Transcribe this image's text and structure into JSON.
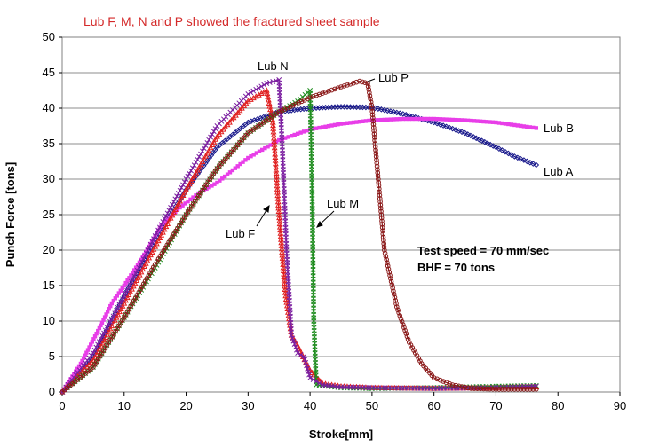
{
  "chart_data": {
    "type": "line",
    "title": "Lub F, M, N and P showed the fractured sheet sample",
    "title_color": "#d42a2a",
    "xlabel": "Stroke[mm]",
    "ylabel": "Punch Force [tons]",
    "xlim": [
      0,
      90
    ],
    "ylim": [
      0,
      50
    ],
    "xticks": [
      0,
      10,
      20,
      30,
      40,
      50,
      60,
      70,
      80,
      90
    ],
    "yticks": [
      0,
      5,
      10,
      15,
      20,
      25,
      30,
      35,
      40,
      45,
      50
    ],
    "grid": "horizontal",
    "legend": "none",
    "annotations": [
      "Test speed = 70 mm/sec",
      "BHF = 70 tons"
    ],
    "series": [
      {
        "name": "Lub A",
        "color": "#1a1a8c",
        "marker": "diamond",
        "x": [
          0,
          5,
          10,
          15,
          20,
          25,
          30,
          35,
          40,
          45,
          50,
          55,
          60,
          65,
          70,
          73,
          76.5
        ],
        "y": [
          0,
          5,
          13.5,
          21.5,
          28.5,
          34.5,
          38,
          39.5,
          40,
          40.2,
          40.1,
          39.2,
          38,
          36.5,
          34.5,
          33.2,
          32
        ]
      },
      {
        "name": "Lub B",
        "color": "#e83ee8",
        "marker": "square",
        "x": [
          0,
          3,
          6,
          8,
          10,
          13,
          16,
          19,
          22,
          25,
          30,
          35,
          40,
          45,
          50,
          55,
          60,
          65,
          70,
          76.5
        ],
        "y": [
          0,
          4,
          9,
          12.5,
          15,
          19,
          23.5,
          26,
          28,
          29.5,
          33,
          35.5,
          37,
          37.8,
          38.3,
          38.5,
          38.5,
          38.3,
          38,
          37.2
        ]
      },
      {
        "name": "Lub F",
        "color": "#e02020",
        "marker": "triangle",
        "x": [
          0,
          5,
          10,
          15,
          20,
          25,
          30,
          33,
          34,
          35,
          36,
          37,
          38,
          40,
          42,
          45,
          50,
          60,
          70,
          76.5
        ],
        "y": [
          0,
          4.5,
          12.5,
          20.5,
          28.5,
          36,
          41,
          42.5,
          38,
          25,
          14,
          8,
          6.5,
          3,
          1.2,
          0.8,
          0.6,
          0.5,
          0.6,
          0.7
        ]
      },
      {
        "name": "Lub M",
        "color": "#1e8c1e",
        "marker": "x",
        "x": [
          0,
          5,
          10,
          15,
          20,
          25,
          30,
          35,
          38,
          40,
          40.3,
          40.6,
          41,
          45,
          50,
          60,
          70,
          76.5
        ],
        "y": [
          0,
          3.5,
          10.5,
          17.5,
          25,
          31.5,
          36.5,
          39.5,
          41,
          42.5,
          30,
          10,
          1,
          0.6,
          0.5,
          0.6,
          0.8,
          0.9
        ]
      },
      {
        "name": "Lub N",
        "color": "#7b1fa0",
        "marker": "x",
        "x": [
          0,
          5,
          10,
          15,
          20,
          25,
          30,
          33,
          35,
          35.5,
          36.2,
          37,
          38,
          39,
          40,
          42,
          45,
          50,
          60,
          70,
          76.5
        ],
        "y": [
          0,
          5.5,
          13.5,
          22,
          30,
          37.5,
          42,
          43.5,
          44,
          35,
          20,
          8,
          5.5,
          5,
          2,
          1,
          0.7,
          0.6,
          0.5,
          0.6,
          0.8
        ]
      },
      {
        "name": "Lub P",
        "color": "#8b1a1a",
        "marker": "circle",
        "x": [
          0,
          5,
          10,
          15,
          20,
          25,
          30,
          35,
          40,
          45,
          48,
          49.3,
          50,
          51,
          52,
          54,
          56,
          58,
          60,
          63,
          66,
          70,
          76.5
        ],
        "y": [
          0,
          3.5,
          10.5,
          18,
          25,
          31.5,
          36.5,
          39.5,
          41.5,
          43,
          43.8,
          43.5,
          40,
          30,
          20,
          12,
          7,
          4,
          2,
          1,
          0.5,
          0.4,
          0.4
        ]
      }
    ],
    "labels": [
      {
        "text": "Lub N",
        "series": "Lub N"
      },
      {
        "text": "Lub P",
        "series": "Lub P"
      },
      {
        "text": "Lub B",
        "series": "Lub B"
      },
      {
        "text": "Lub A",
        "series": "Lub A"
      },
      {
        "text": "Lub M",
        "series": "Lub M"
      },
      {
        "text": "Lub F",
        "series": "Lub F"
      }
    ]
  }
}
